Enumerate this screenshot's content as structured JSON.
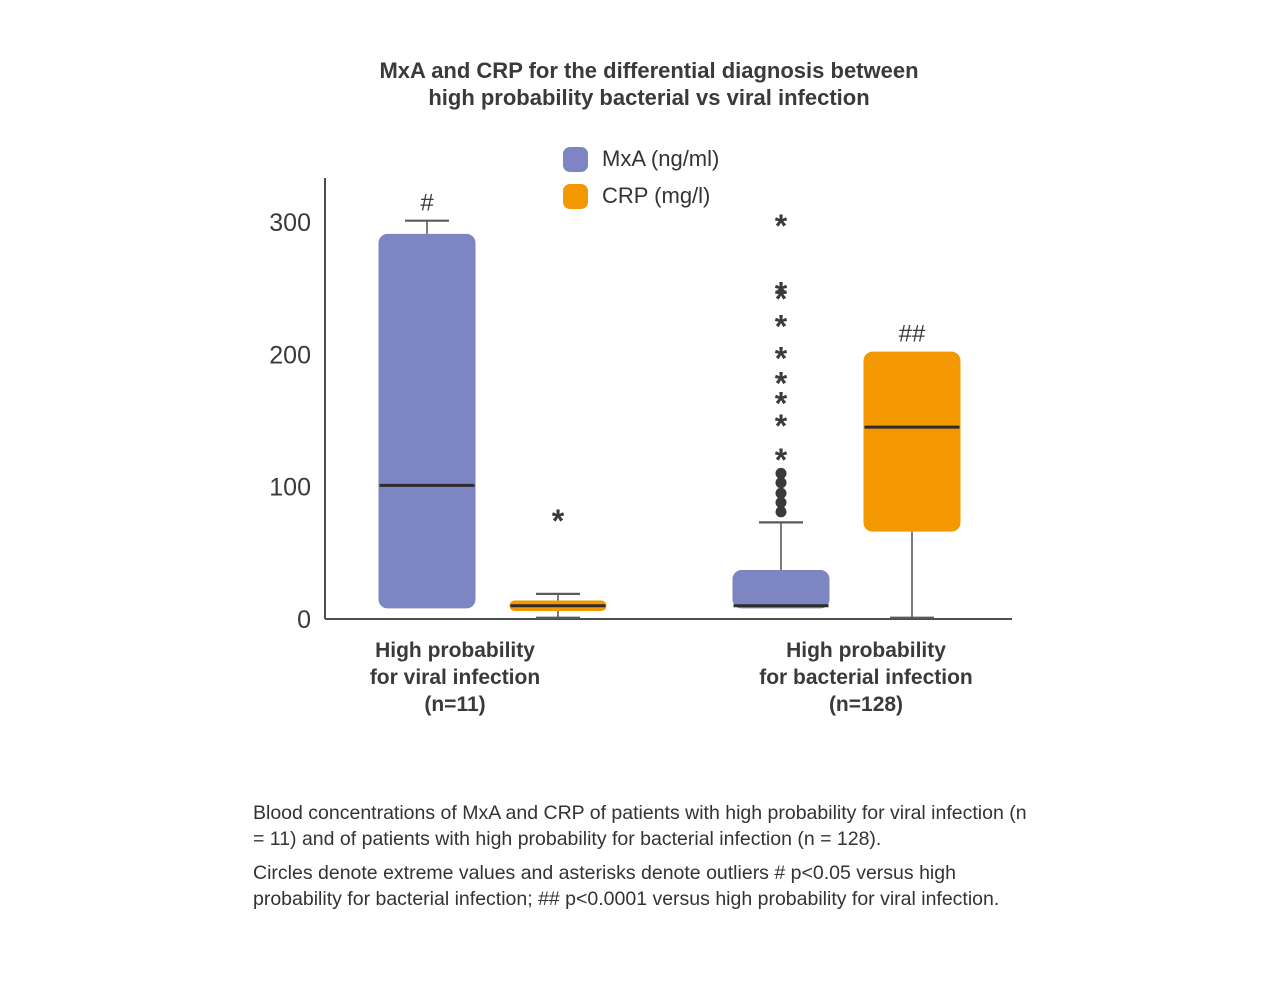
{
  "title": {
    "line1": "MxA and CRP for the differential diagnosis between",
    "line2": "high probability bacterial vs viral infection"
  },
  "caption": {
    "p1": "Blood concentrations of MxA and CRP of patients with high probability for viral infection (n = 11) and of patients with high probability for bacterial infection (n = 128).",
    "p2": "Circles denote extreme values and asterisks denote outliers # p<0.05 versus high probability for bacterial infection; ## p<0.0001 versus high probability for viral infection."
  },
  "chart_data": {
    "type": "boxplot",
    "title": "MxA and CRP for the differential diagnosis between high probability bacterial vs viral infection",
    "ylim": [
      0,
      333
    ],
    "yticks": [
      0,
      100,
      200,
      300
    ],
    "grid": false,
    "legend_position": "top-center",
    "axis_color": "#4d4d4d",
    "ink_color": "#3a3a3a",
    "whisker_color": "#5a5a5a",
    "median_color": "#2d2d2d",
    "legend": [
      {
        "label": "MxA (ng/ml)",
        "color": "#7d85c3"
      },
      {
        "label": "CRP (mg/l)",
        "color": "#f39800"
      }
    ],
    "groups": [
      {
        "id": "viral",
        "label_lines": [
          "High probability",
          "for viral infection",
          "(n=11)"
        ],
        "boxes": [
          {
            "id": "mxa",
            "series": "MxA (ng/ml)",
            "color": "#7d85c3",
            "q1": 8,
            "median": 101,
            "q3": 291,
            "whisker_low": null,
            "whisker_high": 301,
            "outliers": [],
            "extremes": [],
            "annotation": "#"
          },
          {
            "id": "crp",
            "series": "CRP (mg/l)",
            "color": "#f39800",
            "q1": 6,
            "median": 10,
            "q3": 14,
            "whisker_low": 1,
            "whisker_high": 19,
            "outliers": [
              77
            ],
            "extremes": [],
            "annotation": null
          }
        ]
      },
      {
        "id": "bacterial",
        "label_lines": [
          "High probability",
          "for bacterial infection",
          "(n=128)"
        ],
        "boxes": [
          {
            "id": "mxa",
            "series": "MxA (ng/ml)",
            "color": "#7d85c3",
            "q1": 8,
            "median": 10,
            "q3": 37,
            "whisker_low": null,
            "whisker_high": 73,
            "outliers": [
              300,
              249,
              245,
              224,
              200,
              181,
              166,
              149,
              123
            ],
            "extremes": [
              110,
              103,
              95,
              88,
              81
            ],
            "annotation": null
          },
          {
            "id": "crp",
            "series": "CRP (mg/l)",
            "color": "#f39800",
            "q1": 66,
            "median": 145,
            "q3": 202,
            "whisker_low": 1,
            "whisker_high": null,
            "outliers": [],
            "extremes": [],
            "annotation": "##"
          }
        ]
      }
    ]
  }
}
